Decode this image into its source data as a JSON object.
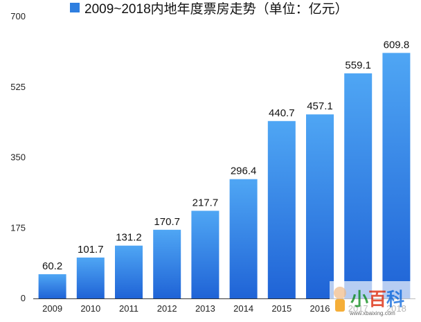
{
  "chart_data": {
    "type": "bar",
    "title": "",
    "legend": [
      {
        "name": "2009~2018内地年度票房走势（单位：亿元）",
        "color": "#2f7fe0"
      }
    ],
    "categories": [
      "2009",
      "2010",
      "2011",
      "2012",
      "2013",
      "2014",
      "2015",
      "2016",
      "2017",
      "2018"
    ],
    "series": [
      {
        "name": "2009~2018内地年度票房走势（单位：亿元）",
        "values": [
          60.2,
          101.7,
          131.2,
          170.7,
          217.7,
          296.4,
          440.7,
          457.1,
          559.1,
          609.8
        ],
        "labels": [
          "60.2",
          "101.7",
          "131.2",
          "170.7",
          "217.7",
          "296.4",
          "440.7",
          "457.1",
          "559.1",
          "609.8"
        ]
      }
    ],
    "y_ticks": [
      "0",
      "175",
      "350",
      "525",
      "700"
    ],
    "ylim": [
      0,
      700
    ],
    "grid": false,
    "legend_position": "top-left",
    "colors": {
      "bar_top": "#4fa6f4",
      "bar_bottom": "#1f63d6",
      "legend": "#2f7fe0"
    }
  },
  "watermark": {
    "text": "小百科",
    "url": "www.xbaixing.com"
  }
}
